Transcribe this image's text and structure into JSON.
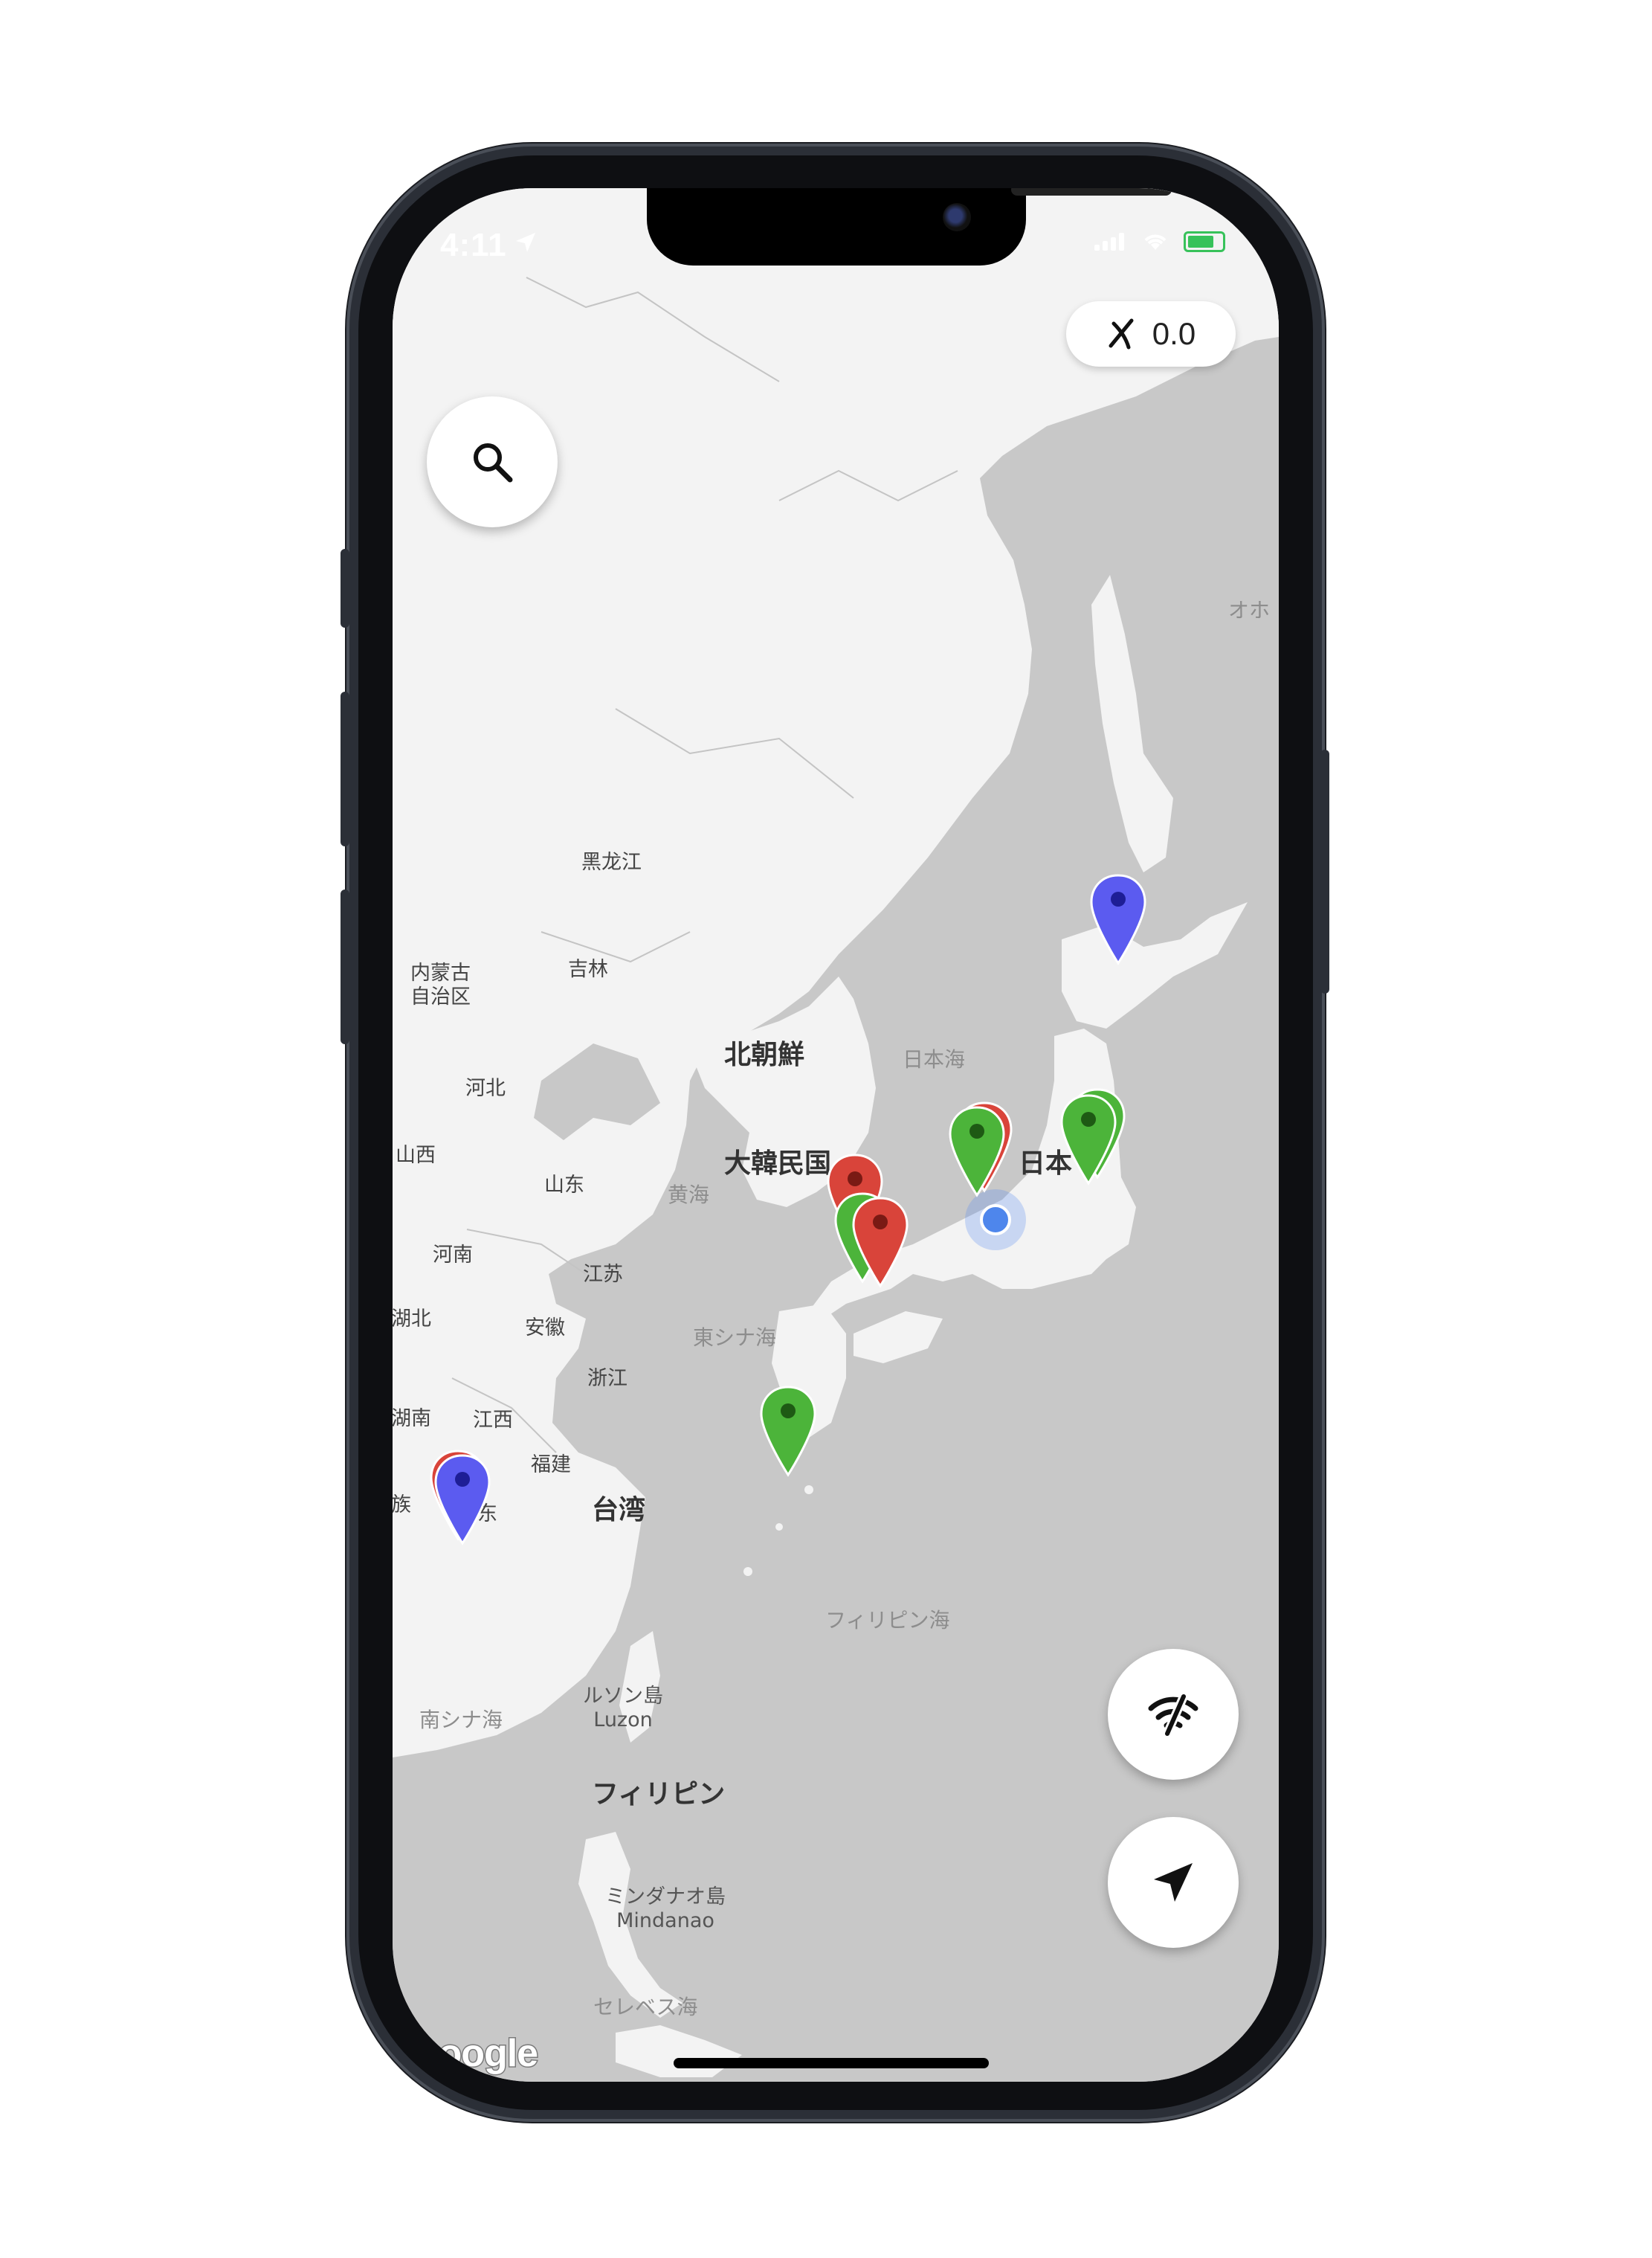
{
  "status_bar": {
    "time": "4:11"
  },
  "speed_pill": {
    "value": "0.0",
    "icon": "satellite-off-icon"
  },
  "buttons": {
    "search_icon": "search-icon",
    "wifi_off_icon": "wifi-off-icon",
    "location_icon": "navigation-arrow-icon"
  },
  "map": {
    "provider": "Google",
    "labels": {
      "heilongjiang": "黑龙江",
      "jilin": "吉林",
      "inner_mongolia": [
        "内蒙古",
        "自治区"
      ],
      "hebei": "河北",
      "shanxi": "山西",
      "shandong": "山东",
      "henan": "河南",
      "jiangsu": "江苏",
      "hubei": "湖北",
      "anhui": "安徽",
      "zhejiang": "浙江",
      "hunan": "湖南",
      "jiangxi": "江西",
      "fujian": "福建",
      "guangdong_partial": "东",
      "guangxi_partial": "族",
      "north_korea": "北朝鮮",
      "south_korea": "大韓民国",
      "japan_partial": "日本",
      "taiwan": "台湾",
      "sea_of_japan": "日本海",
      "yellow_sea": "黄海",
      "east_china_sea": "東シナ海",
      "philippine_sea": "フィリピン海",
      "south_china_sea": "南シナ海",
      "luzon": [
        "ルソン島",
        "Luzon"
      ],
      "philippines": "フィリピン",
      "mindanao": [
        "ミンダナオ島",
        "Mindanao"
      ],
      "celebes_sea": "セレベス海",
      "okhotsk_partial": "オホ"
    }
  },
  "pins": [
    {
      "id": "hokkaido",
      "color": "#5b5bf0"
    },
    {
      "id": "tokyo-1",
      "color": "#4cb43a"
    },
    {
      "id": "tokyo-2",
      "color": "#4cb43a"
    },
    {
      "id": "nagoya",
      "color": "#d9443a"
    },
    {
      "id": "kyoto",
      "color": "#4cb43a"
    },
    {
      "id": "kyushu-1",
      "color": "#d9443a"
    },
    {
      "id": "kyushu-2",
      "color": "#4cb43a"
    },
    {
      "id": "kyushu-3",
      "color": "#d9443a"
    },
    {
      "id": "okinawa",
      "color": "#4cb43a"
    },
    {
      "id": "guangdong",
      "color": "#5b5bf0"
    }
  ]
}
